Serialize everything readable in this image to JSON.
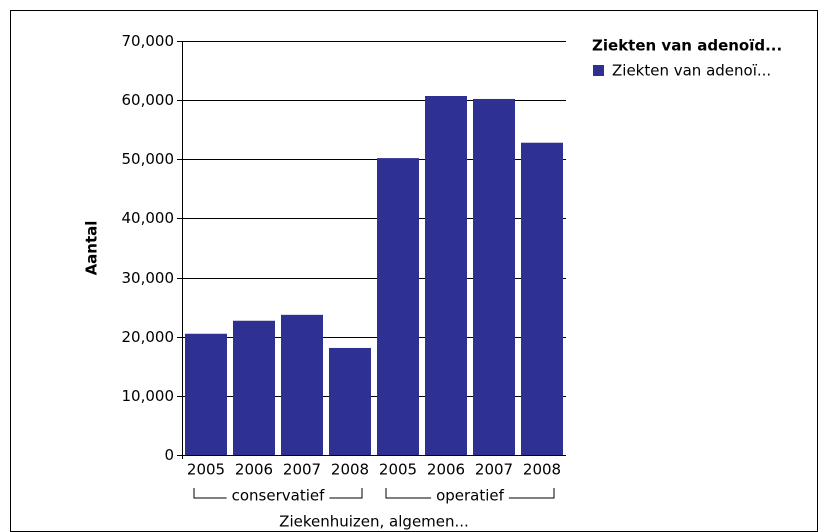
{
  "chart_data": {
    "type": "bar",
    "y_label": "Aantal",
    "x_label": "Ziekenhuizen, algemen...",
    "legend_title": "Ziekten van adenoïd...",
    "groups": [
      {
        "label": "conservatief",
        "categories": [
          "2005",
          "2006",
          "2007",
          "2008"
        ]
      },
      {
        "label": "operatief",
        "categories": [
          "2005",
          "2006",
          "2007",
          "2008"
        ]
      }
    ],
    "series": [
      {
        "name": "Ziekten van adenoï...",
        "color": "#2e3192",
        "values": [
          20500,
          22700,
          23700,
          18100,
          50200,
          60700,
          60200,
          52800
        ]
      }
    ],
    "ylim": [
      0,
      70000
    ],
    "yticks": [
      0,
      {
        "value": 10000,
        "label": "10,000"
      },
      {
        "value": 20000,
        "label": "20,000"
      },
      {
        "value": 30000,
        "label": "30,000"
      },
      {
        "value": 40000,
        "label": "40,000"
      },
      {
        "value": 50000,
        "label": "50,000"
      },
      {
        "value": 60000,
        "label": "60,000"
      },
      {
        "value": 70000,
        "label": "70,000"
      }
    ],
    "grid": true
  }
}
